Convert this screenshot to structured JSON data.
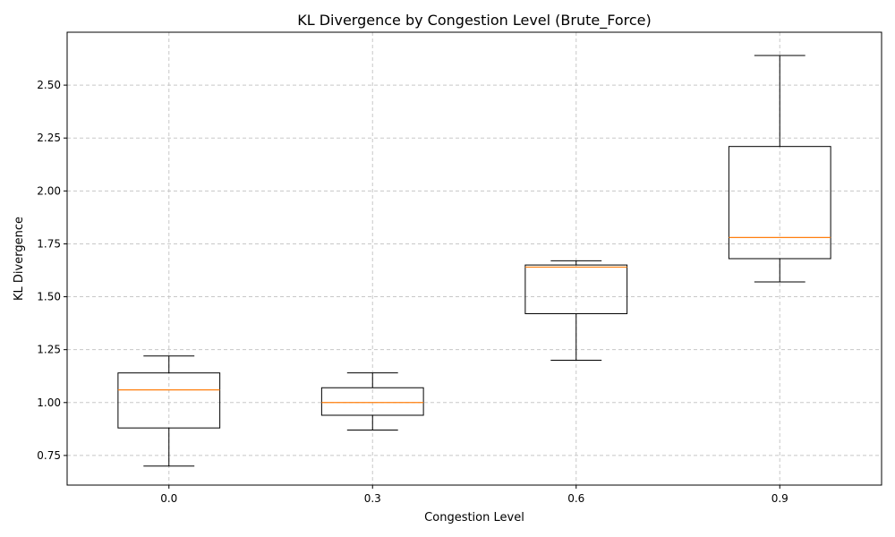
{
  "chart_data": {
    "type": "box",
    "title": "KL Divergence by Congestion Level (Brute_Force)",
    "xlabel": "Congestion Level",
    "ylabel": "KL Divergence",
    "categories": [
      "0.0",
      "0.3",
      "0.6",
      "0.9"
    ],
    "ylim": [
      0.61,
      2.75
    ],
    "yticks": [
      0.75,
      1.0,
      1.25,
      1.5,
      1.75,
      2.0,
      2.25,
      2.5
    ],
    "ytick_labels": [
      "0.75",
      "1.00",
      "1.25",
      "1.50",
      "1.75",
      "2.00",
      "2.25",
      "2.50"
    ],
    "grid": true,
    "boxes": [
      {
        "category": "0.0",
        "whislo": 0.7,
        "q1": 0.88,
        "med": 1.06,
        "q3": 1.14,
        "whishi": 1.22
      },
      {
        "category": "0.3",
        "whislo": 0.87,
        "q1": 0.94,
        "med": 1.0,
        "q3": 1.07,
        "whishi": 1.14
      },
      {
        "category": "0.6",
        "whislo": 1.2,
        "q1": 1.42,
        "med": 1.64,
        "q3": 1.65,
        "whishi": 1.67
      },
      {
        "category": "0.9",
        "whislo": 1.57,
        "q1": 1.68,
        "med": 1.78,
        "q3": 2.21,
        "whishi": 2.64
      }
    ],
    "colors": {
      "box": "#000000",
      "median": "#ff7f0e",
      "grid": "#c8c8c8"
    }
  }
}
